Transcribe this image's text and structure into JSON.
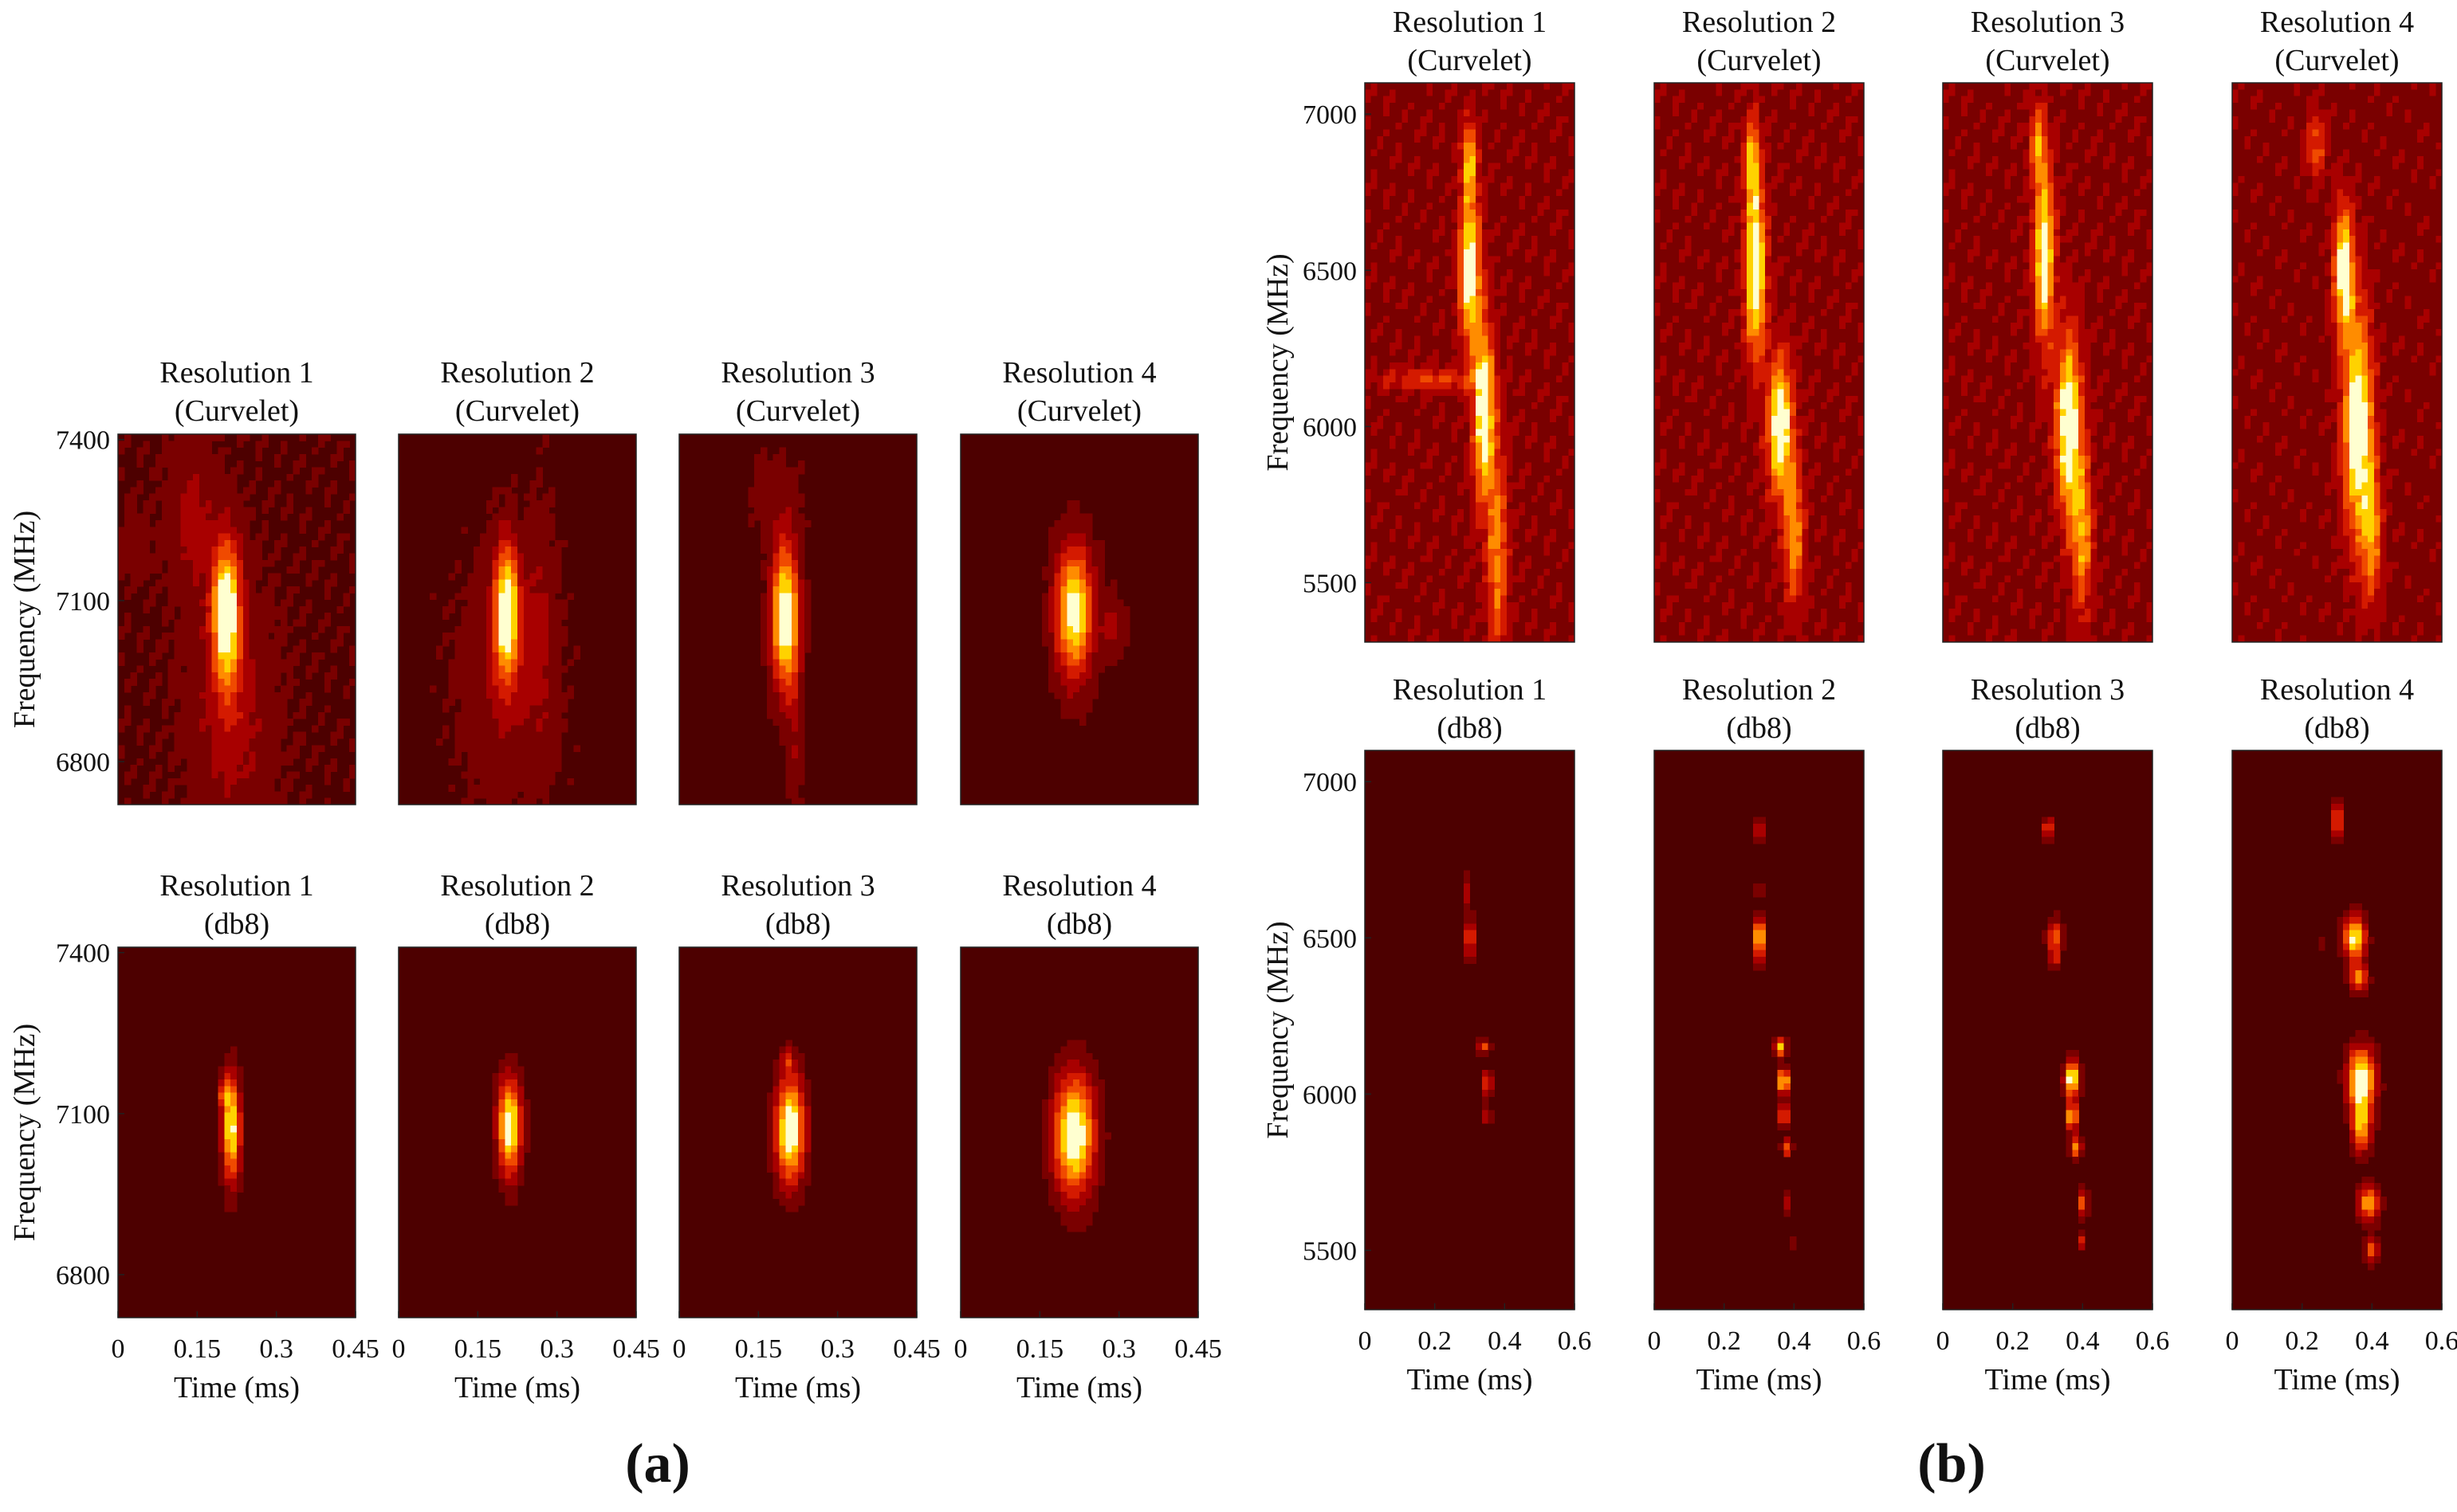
{
  "figure": {
    "panel_a_label": "(a)",
    "panel_b_label": "(b)"
  },
  "colormap": {
    "name": "hot-ish",
    "stops": [
      "#4d0000",
      "#7a0000",
      "#a80000",
      "#d41a00",
      "#f04a00",
      "#ff8c00",
      "#ffd200",
      "#ffffd0"
    ]
  },
  "chart_data": [
    {
      "panel": "a",
      "type": "heatmap",
      "shared_xlabel": "Time (ms)",
      "shared_ylabel": "Frequency (MHz)",
      "xlim": [
        0,
        0.45
      ],
      "ylim": [
        6720,
        7410
      ],
      "xticks": [
        0,
        0.15,
        0.3,
        0.45
      ],
      "xtick_labels": [
        "0",
        "0.15",
        "0.3",
        "0.45"
      ],
      "yticks": [
        7400,
        7100,
        6800
      ],
      "ytick_labels": [
        "7400",
        "7100",
        "6800"
      ],
      "rows": [
        {
          "name": "Curvelet",
          "subplots": [
            {
              "title": "Resolution 1",
              "subtitle": "(Curvelet)",
              "background": 0.15,
              "blobs": [
                {
                  "t": 0.205,
                  "f": 7080,
                  "st": 0.018,
                  "sf": 90,
                  "a": 0.95
                },
                {
                  "t": 0.215,
                  "f": 6900,
                  "st": 0.05,
                  "sf": 140,
                  "a": 0.22
                },
                {
                  "t": 0.14,
                  "f": 7250,
                  "st": 0.03,
                  "sf": 100,
                  "a": 0.18
                },
                {
                  "t": 0.03,
                  "f": 7200,
                  "st": 0.02,
                  "sf": 40,
                  "a": 0.12
                }
              ]
            },
            {
              "title": "Resolution 2",
              "subtitle": "(Curvelet)",
              "background": 0.12,
              "blobs": [
                {
                  "t": 0.205,
                  "f": 7080,
                  "st": 0.016,
                  "sf": 85,
                  "a": 0.95
                },
                {
                  "t": 0.2,
                  "f": 6950,
                  "st": 0.06,
                  "sf": 150,
                  "a": 0.16
                },
                {
                  "t": 0.27,
                  "f": 7050,
                  "st": 0.02,
                  "sf": 160,
                  "a": 0.14
                }
              ]
            },
            {
              "title": "Resolution 3",
              "subtitle": "(Curvelet)",
              "background": 0.1,
              "blobs": [
                {
                  "t": 0.2,
                  "f": 7070,
                  "st": 0.018,
                  "sf": 95,
                  "a": 0.95
                },
                {
                  "t": 0.22,
                  "f": 6870,
                  "st": 0.01,
                  "sf": 160,
                  "a": 0.15
                },
                {
                  "t": 0.18,
                  "f": 7300,
                  "st": 0.04,
                  "sf": 60,
                  "a": 0.1
                }
              ]
            },
            {
              "title": "Resolution 4",
              "subtitle": "(Curvelet)",
              "background": 0.1,
              "blobs": [
                {
                  "t": 0.215,
                  "f": 7080,
                  "st": 0.025,
                  "sf": 85,
                  "a": 0.9
                },
                {
                  "t": 0.29,
                  "f": 7050,
                  "st": 0.015,
                  "sf": 40,
                  "a": 0.22
                }
              ]
            }
          ]
        },
        {
          "name": "db8",
          "subplots": [
            {
              "title": "Resolution 1",
              "subtitle": "(db8)",
              "background": 0.05,
              "blobs": [
                {
                  "t": 0.215,
                  "f": 7070,
                  "st": 0.012,
                  "sf": 70,
                  "a": 0.9
                },
                {
                  "t": 0.2,
                  "f": 7140,
                  "st": 0.008,
                  "sf": 20,
                  "a": 0.4
                }
              ]
            },
            {
              "title": "Resolution 2",
              "subtitle": "(db8)",
              "background": 0.05,
              "blobs": [
                {
                  "t": 0.21,
                  "f": 7075,
                  "st": 0.016,
                  "sf": 65,
                  "a": 0.95
                }
              ]
            },
            {
              "title": "Resolution 3",
              "subtitle": "(db8)",
              "background": 0.05,
              "blobs": [
                {
                  "t": 0.21,
                  "f": 7070,
                  "st": 0.02,
                  "sf": 70,
                  "a": 1.0
                },
                {
                  "t": 0.205,
                  "f": 7200,
                  "st": 0.008,
                  "sf": 15,
                  "a": 0.3
                }
              ]
            },
            {
              "title": "Resolution 4",
              "subtitle": "(db8)",
              "background": 0.05,
              "blobs": [
                {
                  "t": 0.215,
                  "f": 7060,
                  "st": 0.028,
                  "sf": 80,
                  "a": 1.0
                }
              ]
            }
          ]
        }
      ]
    },
    {
      "panel": "b",
      "type": "heatmap",
      "shared_xlabel": "Time (ms)",
      "shared_ylabel": "Frequency (MHz)",
      "xlim": [
        0,
        0.6
      ],
      "ylim": [
        5310,
        7100
      ],
      "xticks": [
        0,
        0.2,
        0.4,
        0.6
      ],
      "xtick_labels": [
        "0",
        "0.2",
        "0.4",
        "0.6"
      ],
      "yticks": [
        7000,
        6500,
        6000,
        5500
      ],
      "ytick_labels": [
        "7000",
        "6500",
        "6000",
        "5500"
      ],
      "rows": [
        {
          "name": "Curvelet",
          "subplots": [
            {
              "title": "Resolution 1",
              "subtitle": "(Curvelet)",
              "background": 0.3,
              "blobs": [
                {
                  "t": 0.3,
                  "f": 6500,
                  "st": 0.02,
                  "sf": 160,
                  "a": 0.85
                },
                {
                  "t": 0.34,
                  "f": 6050,
                  "st": 0.02,
                  "sf": 200,
                  "a": 0.8
                },
                {
                  "t": 0.3,
                  "f": 6850,
                  "st": 0.015,
                  "sf": 90,
                  "a": 0.55
                },
                {
                  "t": 0.38,
                  "f": 5600,
                  "st": 0.02,
                  "sf": 250,
                  "a": 0.45
                },
                {
                  "t": 0.2,
                  "f": 6150,
                  "st": 0.1,
                  "sf": 25,
                  "a": 0.3
                }
              ]
            },
            {
              "title": "Resolution 2",
              "subtitle": "(Curvelet)",
              "background": 0.3,
              "blobs": [
                {
                  "t": 0.29,
                  "f": 6500,
                  "st": 0.02,
                  "sf": 180,
                  "a": 0.9
                },
                {
                  "t": 0.36,
                  "f": 6000,
                  "st": 0.025,
                  "sf": 150,
                  "a": 0.85
                },
                {
                  "t": 0.28,
                  "f": 6850,
                  "st": 0.015,
                  "sf": 100,
                  "a": 0.55
                },
                {
                  "t": 0.4,
                  "f": 5650,
                  "st": 0.02,
                  "sf": 150,
                  "a": 0.5
                }
              ]
            },
            {
              "title": "Resolution 3",
              "subtitle": "(Curvelet)",
              "background": 0.3,
              "blobs": [
                {
                  "t": 0.29,
                  "f": 6550,
                  "st": 0.02,
                  "sf": 200,
                  "a": 0.8
                },
                {
                  "t": 0.36,
                  "f": 6000,
                  "st": 0.025,
                  "sf": 200,
                  "a": 0.85
                },
                {
                  "t": 0.4,
                  "f": 5650,
                  "st": 0.02,
                  "sf": 180,
                  "a": 0.5
                },
                {
                  "t": 0.27,
                  "f": 6900,
                  "st": 0.015,
                  "sf": 80,
                  "a": 0.45
                }
              ]
            },
            {
              "title": "Resolution 4",
              "subtitle": "(Curvelet)",
              "background": 0.28,
              "blobs": [
                {
                  "t": 0.32,
                  "f": 6500,
                  "st": 0.02,
                  "sf": 140,
                  "a": 0.8
                },
                {
                  "t": 0.36,
                  "f": 6000,
                  "st": 0.03,
                  "sf": 250,
                  "a": 0.85
                },
                {
                  "t": 0.4,
                  "f": 5650,
                  "st": 0.02,
                  "sf": 150,
                  "a": 0.45
                },
                {
                  "t": 0.24,
                  "f": 6900,
                  "st": 0.02,
                  "sf": 80,
                  "a": 0.35
                }
              ]
            }
          ]
        },
        {
          "name": "db8",
          "subplots": [
            {
              "title": "Resolution 1",
              "subtitle": "(db8)",
              "background": 0.05,
              "blobs": [
                {
                  "t": 0.3,
                  "f": 6500,
                  "st": 0.008,
                  "sf": 50,
                  "a": 0.65
                },
                {
                  "t": 0.34,
                  "f": 6150,
                  "st": 0.015,
                  "sf": 15,
                  "a": 0.5
                },
                {
                  "t": 0.35,
                  "f": 6030,
                  "st": 0.01,
                  "sf": 30,
                  "a": 0.55
                },
                {
                  "t": 0.35,
                  "f": 5930,
                  "st": 0.008,
                  "sf": 20,
                  "a": 0.4
                },
                {
                  "t": 0.29,
                  "f": 6650,
                  "st": 0.006,
                  "sf": 40,
                  "a": 0.3
                }
              ]
            },
            {
              "title": "Resolution 2",
              "subtitle": "(db8)",
              "background": 0.05,
              "blobs": [
                {
                  "t": 0.3,
                  "f": 6850,
                  "st": 0.008,
                  "sf": 25,
                  "a": 0.6
                },
                {
                  "t": 0.3,
                  "f": 6650,
                  "st": 0.006,
                  "sf": 15,
                  "a": 0.4
                },
                {
                  "t": 0.3,
                  "f": 6500,
                  "st": 0.01,
                  "sf": 50,
                  "a": 0.9
                },
                {
                  "t": 0.36,
                  "f": 6150,
                  "st": 0.012,
                  "sf": 20,
                  "a": 0.75
                },
                {
                  "t": 0.37,
                  "f": 6040,
                  "st": 0.012,
                  "sf": 30,
                  "a": 0.9
                },
                {
                  "t": 0.37,
                  "f": 5930,
                  "st": 0.01,
                  "sf": 25,
                  "a": 0.65
                },
                {
                  "t": 0.38,
                  "f": 5830,
                  "st": 0.01,
                  "sf": 20,
                  "a": 0.55
                },
                {
                  "t": 0.38,
                  "f": 5650,
                  "st": 0.008,
                  "sf": 20,
                  "a": 0.35
                },
                {
                  "t": 0.39,
                  "f": 5520,
                  "st": 0.006,
                  "sf": 15,
                  "a": 0.3
                }
              ]
            },
            {
              "title": "Resolution 3",
              "subtitle": "(db8)",
              "background": 0.05,
              "blobs": [
                {
                  "t": 0.3,
                  "f": 6850,
                  "st": 0.01,
                  "sf": 25,
                  "a": 0.55
                },
                {
                  "t": 0.32,
                  "f": 6500,
                  "st": 0.015,
                  "sf": 40,
                  "a": 0.6
                },
                {
                  "t": 0.32,
                  "f": 6430,
                  "st": 0.008,
                  "sf": 20,
                  "a": 0.35
                },
                {
                  "t": 0.37,
                  "f": 6050,
                  "st": 0.015,
                  "sf": 40,
                  "a": 1.0
                },
                {
                  "t": 0.37,
                  "f": 5930,
                  "st": 0.012,
                  "sf": 30,
                  "a": 0.8
                },
                {
                  "t": 0.38,
                  "f": 5830,
                  "st": 0.012,
                  "sf": 25,
                  "a": 0.65
                },
                {
                  "t": 0.4,
                  "f": 5650,
                  "st": 0.01,
                  "sf": 30,
                  "a": 0.55
                },
                {
                  "t": 0.4,
                  "f": 5530,
                  "st": 0.008,
                  "sf": 20,
                  "a": 0.45
                }
              ]
            },
            {
              "title": "Resolution 4",
              "subtitle": "(db8)",
              "background": 0.05,
              "blobs": [
                {
                  "t": 0.3,
                  "f": 6880,
                  "st": 0.012,
                  "sf": 40,
                  "a": 0.55
                },
                {
                  "t": 0.35,
                  "f": 6500,
                  "st": 0.022,
                  "sf": 50,
                  "a": 0.9
                },
                {
                  "t": 0.36,
                  "f": 6370,
                  "st": 0.018,
                  "sf": 30,
                  "a": 0.65
                },
                {
                  "t": 0.37,
                  "f": 6050,
                  "st": 0.028,
                  "sf": 70,
                  "a": 1.0
                },
                {
                  "t": 0.37,
                  "f": 5900,
                  "st": 0.02,
                  "sf": 60,
                  "a": 0.7
                },
                {
                  "t": 0.39,
                  "f": 5650,
                  "st": 0.022,
                  "sf": 40,
                  "a": 0.7
                },
                {
                  "t": 0.4,
                  "f": 5500,
                  "st": 0.015,
                  "sf": 30,
                  "a": 0.55
                },
                {
                  "t": 0.25,
                  "f": 6490,
                  "st": 0.006,
                  "sf": 15,
                  "a": 0.3
                }
              ]
            }
          ]
        }
      ]
    }
  ]
}
